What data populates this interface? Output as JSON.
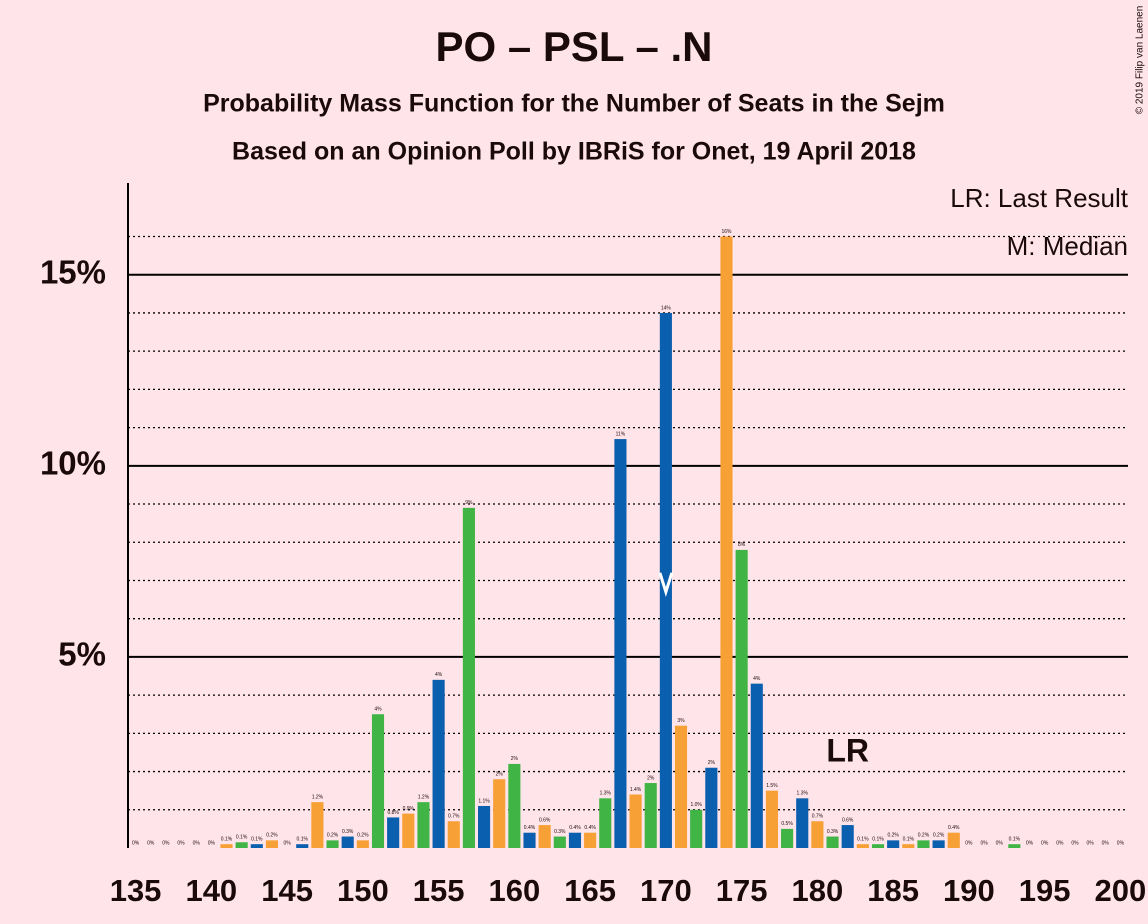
{
  "chart_data": {
    "type": "bar",
    "title": "PO – PSL – .N",
    "subtitle": "Probability Mass Function for the Number of Seats in the Sejm",
    "subtitle2": "Based on an Opinion Poll by IBRiS for Onet, 19 April 2018",
    "copyright": "© 2019 Filip van Laenen",
    "legend": [
      "LR: Last Result",
      "M: Median"
    ],
    "x": [
      135,
      136,
      137,
      138,
      139,
      140,
      141,
      142,
      143,
      144,
      145,
      146,
      147,
      148,
      149,
      150,
      151,
      152,
      153,
      154,
      155,
      156,
      157,
      158,
      159,
      160,
      161,
      162,
      163,
      164,
      165,
      166,
      167,
      168,
      169,
      170,
      171,
      172,
      173,
      174,
      175,
      176,
      177,
      178,
      179,
      180,
      181,
      182,
      183,
      184,
      185,
      186,
      187,
      188,
      189,
      190,
      191,
      192,
      193,
      194,
      195,
      196,
      197,
      198,
      199,
      200
    ],
    "values": [
      0,
      0,
      0,
      0,
      0,
      0,
      0.1,
      0.15,
      0.1,
      0.2,
      0,
      0.1,
      1.2,
      0.2,
      0.3,
      0.2,
      3.5,
      0.8,
      0.9,
      1.2,
      4.4,
      0.7,
      8.9,
      1.1,
      1.8,
      2.2,
      0.4,
      0.6,
      0.3,
      0.4,
      0.4,
      1.3,
      10.7,
      1.4,
      1.7,
      14.0,
      3.2,
      1.0,
      2.1,
      16.0,
      7.8,
      4.3,
      1.5,
      0.5,
      1.3,
      0.7,
      0.3,
      0.6,
      0.1,
      0.1,
      0.2,
      0.1,
      0.2,
      0.2,
      0.4,
      0,
      0,
      0,
      0.1,
      0,
      0,
      0,
      0,
      0,
      0,
      0
    ],
    "value_labels": [
      "0%",
      "0%",
      "0%",
      "0%",
      "0%",
      "0%",
      "0.1%",
      "0.1%",
      "0.1%",
      "0.2%",
      "0%",
      "0.1%",
      "1.2%",
      "0.2%",
      "0.3%",
      "0.2%",
      "4%",
      "0.8%",
      "0.9%",
      "1.2%",
      "4%",
      "0.7%",
      "9%",
      "1.1%",
      "2%",
      "2%",
      "0.4%",
      "0.6%",
      "0.3%",
      "0.4%",
      "0.4%",
      "1.3%",
      "11%",
      "1.4%",
      "2%",
      "14%",
      "3%",
      "1.0%",
      "2%",
      "16%",
      "8%",
      "4%",
      "1.5%",
      "0.5%",
      "1.3%",
      "0.7%",
      "0.3%",
      "0.6%",
      "0.1%",
      "0.1%",
      "0.2%",
      "0.1%",
      "0.2%",
      "0.2%",
      "0.4%",
      "0%",
      "0%",
      "0%",
      "0.1%",
      "0%",
      "0%",
      "0%",
      "0%",
      "0%",
      "0%",
      "0%"
    ],
    "palette": [
      "#F7A035",
      "#40B545",
      "#0B5FAF"
    ],
    "xlim": [
      134.5,
      200.5
    ],
    "xticks": [
      135,
      140,
      145,
      150,
      155,
      160,
      165,
      170,
      175,
      180,
      185,
      190,
      195,
      200
    ],
    "ylim": [
      0,
      17.4
    ],
    "yticks": [
      {
        "value": 5,
        "label": "5%"
      },
      {
        "value": 10,
        "label": "10%"
      },
      {
        "value": 15,
        "label": "15%"
      }
    ],
    "minor_yticks": [
      1,
      2,
      3,
      4,
      6,
      7,
      8,
      9,
      11,
      12,
      13,
      14,
      16
    ],
    "median": 170,
    "annotations": [
      {
        "label": "LR",
        "x": 182
      }
    ]
  }
}
